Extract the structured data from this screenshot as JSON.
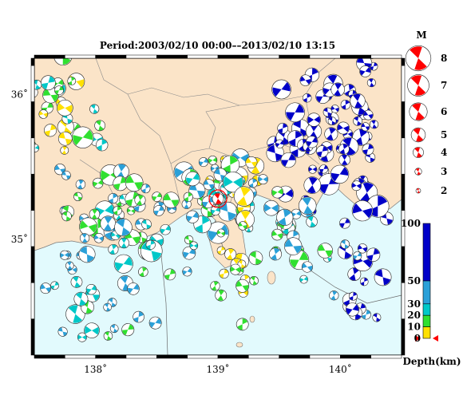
{
  "title": "Period:2003/02/10 00:00––2013/02/10 13:15",
  "map": {
    "lon_range": [
      137.5,
      140.5
    ],
    "lat_range": [
      34.2,
      36.25
    ],
    "x_ticks": [
      {
        "value": 138,
        "label": "138˚"
      },
      {
        "value": 139,
        "label": "139˚"
      },
      {
        "value": 140,
        "label": "140˚"
      }
    ],
    "y_ticks": [
      {
        "value": 36,
        "label": "36˚"
      },
      {
        "value": 35,
        "label": "35˚"
      }
    ],
    "colors": {
      "land": "#fbe4c8",
      "sea": "#e2fafd",
      "border": "#7a7a7a",
      "frame_dark": "#000000",
      "frame_light": "#ffffff"
    }
  },
  "magnitude_legend": {
    "title": "M",
    "items": [
      {
        "m": 8,
        "label": "8"
      },
      {
        "m": 7,
        "label": "7"
      },
      {
        "m": 6,
        "label": "6"
      },
      {
        "m": 5,
        "label": "5"
      },
      {
        "m": 4,
        "label": "4"
      },
      {
        "m": 3,
        "label": "3"
      },
      {
        "m": 2,
        "label": "2"
      }
    ],
    "color": "#ff0000"
  },
  "depth_scale": {
    "label": "Depth(km)",
    "ticks": [
      {
        "value": 100,
        "label": "100"
      },
      {
        "value": 50,
        "label": "50"
      },
      {
        "value": 30,
        "label": "30"
      },
      {
        "value": 20,
        "label": "20"
      },
      {
        "value": 10,
        "label": "10"
      },
      {
        "value": 0,
        "label": "0"
      }
    ],
    "bands": [
      {
        "from": 50,
        "to": 100,
        "color": "#0000c8"
      },
      {
        "from": 30,
        "to": 50,
        "color": "#2aa0d8"
      },
      {
        "from": 20,
        "to": 30,
        "color": "#00c8c8"
      },
      {
        "from": 10,
        "to": 20,
        "color": "#30e030"
      },
      {
        "from": 0,
        "to": 10,
        "color": "#ffe000"
      }
    ],
    "shallow_marker_color": "#ff0000"
  },
  "events": {
    "highlight": {
      "lon": 139.0,
      "lat": 35.28,
      "m": 5.5,
      "color": "#ff0000"
    }
  }
}
